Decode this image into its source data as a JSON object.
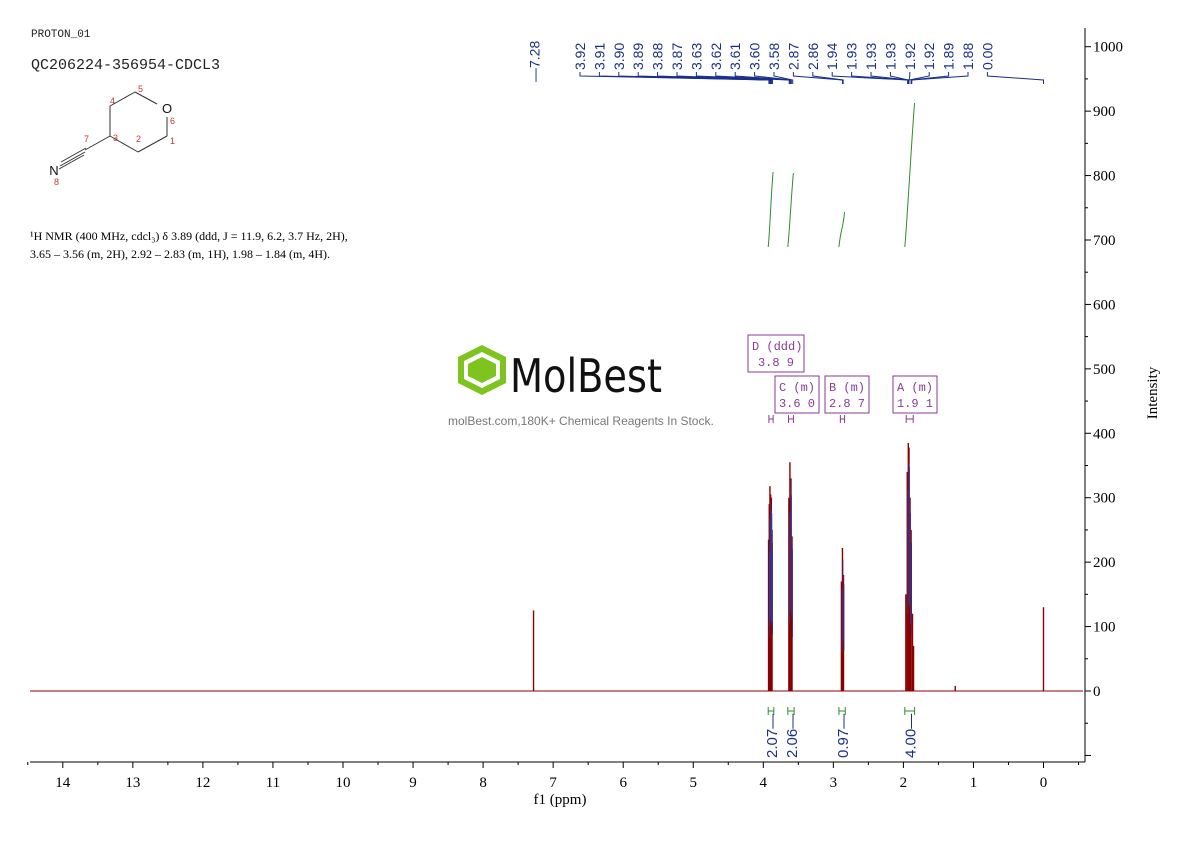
{
  "header": {
    "experiment": "PROTON_01",
    "sample_id": "QC206224-356954-CDCL3"
  },
  "structure": {
    "atom_labels": [
      "1",
      "2",
      "3",
      "4",
      "5",
      "6",
      "7",
      "8"
    ],
    "heteroatoms": [
      "O",
      "N"
    ]
  },
  "report": {
    "line1": "¹H NMR (400 MHz, cdcl₃) δ 3.89 (ddd, J = 11.9, 6.2, 3.7 Hz, 2H),",
    "line2": "3.65 – 3.56 (m, 2H), 2.92 – 2.83 (m, 1H), 1.98 – 1.84 (m, 4H)."
  },
  "watermark": {
    "brand": "MolBest",
    "tagline": "molBest.com,180K+ Chemical Reagents In Stock."
  },
  "colors": {
    "spectrum": "#8b0000",
    "peak_labels": "#1a2f8a",
    "integral": "#2e8b2e",
    "multiplet_box": "#8a3a9a",
    "logo_green": "#7dc41f"
  },
  "chart_data": {
    "type": "line",
    "xlabel": "f1 (ppm)",
    "ylabel": "Intensity",
    "xlim": [
      14.5,
      -0.5
    ],
    "ylim": [
      -110,
      1020
    ],
    "x_ticks": [
      14,
      13,
      12,
      11,
      10,
      9,
      8,
      7,
      6,
      5,
      4,
      3,
      2,
      1,
      0
    ],
    "y_ticks": [
      0,
      100,
      200,
      300,
      400,
      500,
      600,
      700,
      800,
      900,
      1000
    ],
    "peak_labels": [
      "3.92",
      "3.91",
      "3.90",
      "3.89",
      "3.88",
      "3.87",
      "3.63",
      "3.62",
      "3.61",
      "3.60",
      "3.58",
      "2.87",
      "2.86",
      "1.94",
      "1.93",
      "1.93",
      "1.93",
      "1.92",
      "1.92",
      "1.89",
      "1.88",
      "0.00"
    ],
    "peak_labels_single": [
      "7.28"
    ],
    "multiplets": [
      {
        "letter": "D",
        "mult": "ddd",
        "shift": "3.89",
        "range": [
          3.92,
          3.86
        ]
      },
      {
        "letter": "C",
        "mult": "m",
        "shift": "3.60",
        "range": [
          3.64,
          3.57
        ]
      },
      {
        "letter": "B",
        "mult": "m",
        "shift": "2.87",
        "range": [
          2.9,
          2.84
        ]
      },
      {
        "letter": "A",
        "mult": "m",
        "shift": "1.91",
        "range": [
          1.96,
          1.86
        ]
      }
    ],
    "integrals": [
      {
        "value": "2.07",
        "range": [
          3.93,
          3.85
        ]
      },
      {
        "value": "2.06",
        "range": [
          3.65,
          3.56
        ]
      },
      {
        "value": "0.97",
        "range": [
          2.92,
          2.83
        ]
      },
      {
        "value": "4.00",
        "range": [
          1.98,
          1.84
        ]
      }
    ],
    "peaks": [
      {
        "ppm": 7.28,
        "height": 125
      },
      {
        "ppm": 3.925,
        "height": 235
      },
      {
        "ppm": 3.915,
        "height": 290
      },
      {
        "ppm": 3.905,
        "height": 318
      },
      {
        "ppm": 3.895,
        "height": 305
      },
      {
        "ppm": 3.885,
        "height": 300
      },
      {
        "ppm": 3.875,
        "height": 250
      },
      {
        "ppm": 3.635,
        "height": 300
      },
      {
        "ppm": 3.62,
        "height": 355
      },
      {
        "ppm": 3.605,
        "height": 330
      },
      {
        "ppm": 3.59,
        "height": 240
      },
      {
        "ppm": 2.885,
        "height": 170
      },
      {
        "ppm": 2.87,
        "height": 222
      },
      {
        "ppm": 2.855,
        "height": 180
      },
      {
        "ppm": 1.965,
        "height": 150
      },
      {
        "ppm": 1.945,
        "height": 340
      },
      {
        "ppm": 1.93,
        "height": 385
      },
      {
        "ppm": 1.92,
        "height": 378
      },
      {
        "ppm": 1.905,
        "height": 300
      },
      {
        "ppm": 1.89,
        "height": 250
      },
      {
        "ppm": 1.87,
        "height": 120
      },
      {
        "ppm": 1.855,
        "height": 70
      },
      {
        "ppm": 1.26,
        "height": 8
      },
      {
        "ppm": 0.0,
        "height": 130
      }
    ]
  }
}
